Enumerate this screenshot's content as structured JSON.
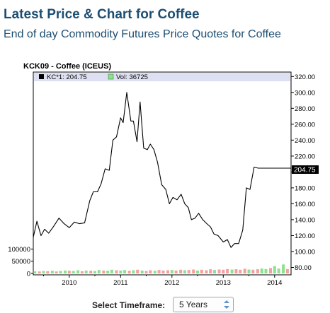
{
  "header": {
    "title": "Latest Price & Chart for Coffee",
    "subtitle": "End of day Commodity Futures Price Quotes for Coffee"
  },
  "timeframe": {
    "label": "Select Timeframe:",
    "selected": "5 Years"
  },
  "colors": {
    "title": "#1d4e72",
    "price_line": "#000000",
    "legend_band": "#dde0f3",
    "vol_up": "#8ee08e",
    "vol_down": "#f2a0a0",
    "last_price_tag_bg": "#000000",
    "last_price_tag_text": "#ffffff"
  },
  "chart_data": {
    "type": "line",
    "title": "KCK09 - Coffee (ICEUS)",
    "legend": [
      {
        "marker": "black",
        "text": "KC*1: 204.75"
      },
      {
        "marker": "green",
        "text": "Vol: 36725"
      }
    ],
    "last_price_label": "204.75",
    "price_axis": {
      "ylim": [
        76,
        322
      ],
      "ticks": [
        80,
        100,
        120,
        140,
        160,
        180,
        200,
        220,
        240,
        260,
        280,
        300,
        320
      ],
      "tick_labels": [
        "80.00",
        "100.00",
        "120.00",
        "140.00",
        "160.00",
        "180.00",
        "",
        "220.00",
        "240.00",
        "260.00",
        "280.00",
        "300.00",
        "320.00"
      ]
    },
    "volume_axis": {
      "ylim": [
        0,
        110000
      ],
      "ticks": [
        0,
        50000,
        100000
      ],
      "tick_labels": [
        "0",
        "50000",
        "100000"
      ]
    },
    "x_axis": {
      "xlim": [
        2009.3,
        2014.32
      ],
      "ticks": [
        2010,
        2011,
        2012,
        2013,
        2014
      ],
      "tick_labels": [
        "2010",
        "2011",
        "2012",
        "2013",
        "2014"
      ]
    },
    "grid": false,
    "price": {
      "x": [
        2009.3,
        2009.37,
        2009.45,
        2009.52,
        2009.6,
        2009.7,
        2009.8,
        2009.9,
        2010.0,
        2010.1,
        2010.2,
        2010.3,
        2010.4,
        2010.47,
        2010.55,
        2010.62,
        2010.7,
        2010.78,
        2010.85,
        2010.92,
        2011.0,
        2011.05,
        2011.12,
        2011.2,
        2011.25,
        2011.32,
        2011.38,
        2011.45,
        2011.52,
        2011.58,
        2011.65,
        2011.72,
        2011.8,
        2011.88,
        2011.95,
        2012.02,
        2012.1,
        2012.18,
        2012.25,
        2012.32,
        2012.38,
        2012.45,
        2012.52,
        2012.6,
        2012.68,
        2012.75,
        2012.82,
        2012.9,
        2013.0,
        2013.08,
        2013.15,
        2013.22,
        2013.3,
        2013.38,
        2013.45,
        2013.52,
        2013.6,
        2013.68,
        2013.75,
        2013.82,
        2013.9,
        2013.97,
        2014.02,
        2014.08,
        2014.12,
        2014.18,
        2014.22,
        2014.27,
        2014.32
      ],
      "y": [
        118,
        138,
        120,
        128,
        123,
        132,
        142,
        135,
        130,
        137,
        135,
        136,
        164,
        175,
        175,
        185,
        204,
        202,
        240,
        244,
        268,
        262,
        300,
        264,
        264,
        238,
        288,
        230,
        228,
        235,
        228,
        212,
        184,
        178,
        160,
        168,
        165,
        172,
        160,
        155,
        140,
        142,
        148,
        140,
        135,
        131,
        122,
        120,
        112,
        115,
        105,
        110,
        110,
        127,
        180,
        178,
        206,
        204.75,
        204.75,
        204.75,
        204.75,
        204.75,
        204.75,
        204.75,
        204.75,
        204.75,
        204.75,
        204.75,
        204.75
      ]
    },
    "volume": {
      "x": [
        2009.33,
        2009.42,
        2009.5,
        2009.58,
        2009.67,
        2009.75,
        2009.83,
        2009.92,
        2010.0,
        2010.08,
        2010.17,
        2010.25,
        2010.33,
        2010.42,
        2010.5,
        2010.58,
        2010.67,
        2010.75,
        2010.83,
        2010.92,
        2011.0,
        2011.08,
        2011.17,
        2011.25,
        2011.33,
        2011.42,
        2011.5,
        2011.58,
        2011.67,
        2011.75,
        2011.83,
        2011.92,
        2012.0,
        2012.08,
        2012.17,
        2012.25,
        2012.33,
        2012.42,
        2012.5,
        2012.58,
        2012.67,
        2012.75,
        2012.83,
        2012.92,
        2013.0,
        2013.08,
        2013.17,
        2013.25,
        2013.33,
        2013.42,
        2013.5,
        2013.58,
        2013.67,
        2013.75,
        2013.83,
        2013.92,
        2014.0,
        2014.08,
        2014.17,
        2014.25
      ],
      "values": [
        9000,
        8000,
        10000,
        9000,
        11000,
        8000,
        10000,
        12000,
        11000,
        10000,
        13000,
        9000,
        12000,
        11000,
        10000,
        14000,
        12000,
        11000,
        15000,
        13000,
        12000,
        14000,
        11000,
        13000,
        15000,
        12000,
        10000,
        13000,
        11000,
        14000,
        12000,
        13000,
        14000,
        12000,
        15000,
        13000,
        14000,
        16000,
        12000,
        15000,
        13000,
        17000,
        14000,
        16000,
        15000,
        18000,
        16000,
        17000,
        15000,
        19000,
        16000,
        15000,
        17000,
        20000,
        18000,
        22000,
        30000,
        20000,
        36725,
        18000
      ],
      "up": [
        true,
        false,
        true,
        false,
        true,
        false,
        true,
        true,
        false,
        true,
        true,
        false,
        true,
        false,
        true,
        true,
        false,
        true,
        true,
        false,
        true,
        true,
        false,
        true,
        false,
        true,
        false,
        false,
        true,
        false,
        false,
        false,
        true,
        false,
        false,
        true,
        false,
        false,
        true,
        false,
        false,
        false,
        true,
        false,
        false,
        false,
        true,
        false,
        false,
        false,
        true,
        false,
        false,
        true,
        true,
        false,
        true,
        true,
        true,
        false
      ]
    }
  }
}
